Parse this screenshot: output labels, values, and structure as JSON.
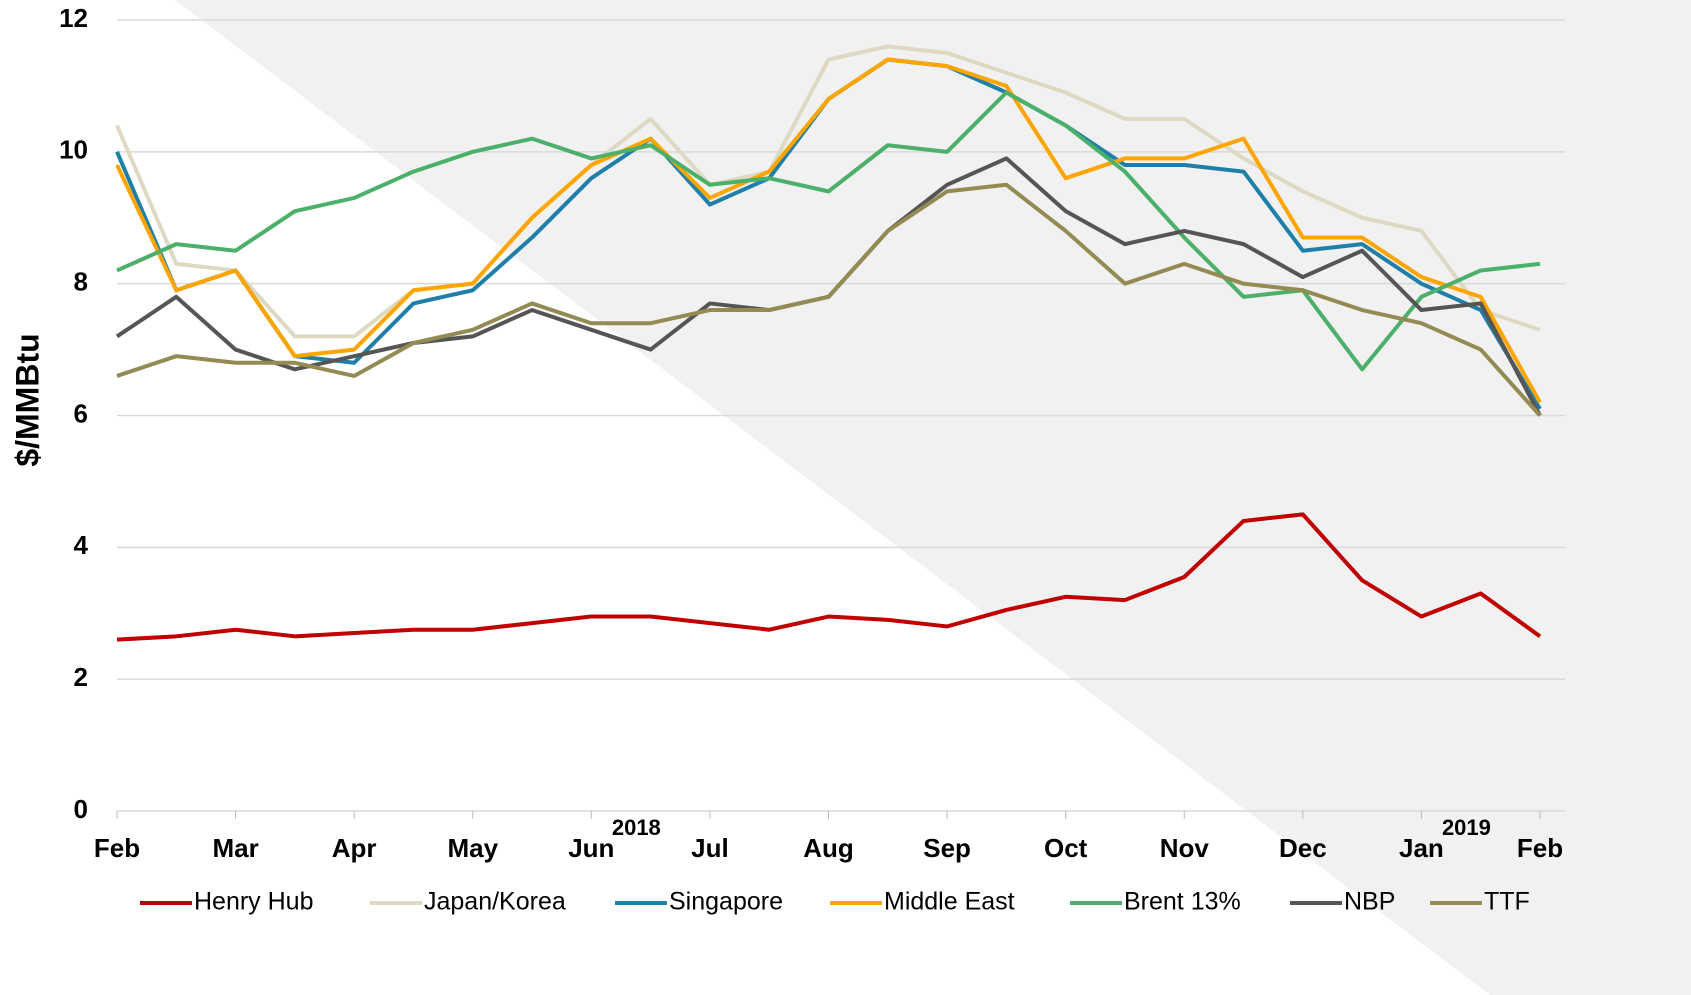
{
  "chart_data": {
    "type": "line",
    "y_label": "$/MMBtu",
    "x": [
      0,
      0.5,
      1,
      1.5,
      2,
      2.5,
      3,
      3.5,
      4,
      4.5,
      5,
      5.5,
      6,
      6.5,
      7,
      7.5,
      8,
      8.5,
      9,
      9.5,
      10,
      10.5,
      11,
      11.5,
      12
    ],
    "xlim": [
      0,
      12
    ],
    "xticks": [
      {
        "value": 0,
        "label": "Feb"
      },
      {
        "value": 1,
        "label": "Mar"
      },
      {
        "value": 2,
        "label": "Apr"
      },
      {
        "value": 3,
        "label": "May"
      },
      {
        "value": 4,
        "label": "Jun"
      },
      {
        "value": 5,
        "label": "Jul"
      },
      {
        "value": 6,
        "label": "Aug"
      },
      {
        "value": 7,
        "label": "Sep"
      },
      {
        "value": 8,
        "label": "Oct"
      },
      {
        "value": 9,
        "label": "Nov"
      },
      {
        "value": 10,
        "label": "Dec"
      },
      {
        "value": 11,
        "label": "Jan"
      },
      {
        "value": 12,
        "label": "Feb"
      }
    ],
    "year_labels": [
      {
        "value": 4,
        "label": "2018"
      },
      {
        "value": 11,
        "label": "2019"
      }
    ],
    "ylim": [
      0,
      12
    ],
    "yticks": [
      0,
      2,
      4,
      6,
      8,
      10,
      12
    ],
    "grid": true,
    "legend": "bottom",
    "series": [
      {
        "name": "Henry Hub",
        "color": "#c00000",
        "values": [
          2.6,
          2.65,
          2.75,
          2.65,
          2.7,
          2.75,
          2.75,
          2.85,
          2.95,
          2.95,
          2.85,
          2.75,
          2.95,
          2.9,
          2.8,
          3.05,
          3.25,
          3.2,
          3.55,
          4.4,
          4.5,
          3.5,
          2.95,
          3.3,
          2.65
        ]
      },
      {
        "name": "Japan/Korea",
        "color": "#ddd9c3",
        "values": [
          10.4,
          8.3,
          8.2,
          7.2,
          7.2,
          7.9,
          8.0,
          9.0,
          9.8,
          10.5,
          9.5,
          9.7,
          11.4,
          11.6,
          11.5,
          11.2,
          10.9,
          10.5,
          10.5,
          9.9,
          9.4,
          9.0,
          8.8,
          7.6,
          7.3
        ]
      },
      {
        "name": "Singapore",
        "color": "#1f7fa8",
        "values": [
          10.0,
          7.9,
          8.2,
          6.9,
          6.8,
          7.7,
          7.9,
          8.7,
          9.6,
          10.2,
          9.2,
          9.6,
          10.8,
          11.4,
          11.3,
          10.9,
          10.4,
          9.8,
          9.8,
          9.7,
          8.5,
          8.6,
          8.0,
          7.6,
          6.1
        ]
      },
      {
        "name": "Middle East",
        "color": "#ffa500",
        "values": [
          9.8,
          7.9,
          8.2,
          6.9,
          7.0,
          7.9,
          8.0,
          9.0,
          9.8,
          10.2,
          9.3,
          9.7,
          10.8,
          11.4,
          11.3,
          11.0,
          9.6,
          9.9,
          9.9,
          10.2,
          8.7,
          8.7,
          8.1,
          7.8,
          6.2
        ]
      },
      {
        "name": "Brent 13%",
        "color": "#4caf6a",
        "values": [
          8.2,
          8.6,
          8.5,
          9.1,
          9.3,
          9.7,
          10.0,
          10.2,
          9.9,
          10.1,
          9.5,
          9.6,
          9.4,
          10.1,
          10.0,
          10.9,
          10.4,
          9.7,
          8.7,
          7.8,
          7.9,
          6.7,
          7.8,
          8.2,
          8.3
        ]
      },
      {
        "name": "NBP",
        "color": "#555555",
        "values": [
          7.2,
          7.8,
          7.0,
          6.7,
          6.9,
          7.1,
          7.2,
          7.6,
          7.3,
          7.0,
          7.7,
          7.6,
          7.8,
          8.8,
          9.5,
          9.9,
          9.1,
          8.6,
          8.8,
          8.6,
          8.1,
          8.5,
          7.6,
          7.7,
          6.0
        ]
      },
      {
        "name": "TTF",
        "color": "#948a54",
        "values": [
          6.6,
          6.9,
          6.8,
          6.8,
          6.6,
          7.1,
          7.3,
          7.7,
          7.4,
          7.4,
          7.6,
          7.6,
          7.8,
          8.8,
          9.4,
          9.5,
          8.8,
          8.0,
          8.3,
          8.0,
          7.9,
          7.6,
          7.4,
          7.0,
          6.0
        ]
      }
    ]
  }
}
